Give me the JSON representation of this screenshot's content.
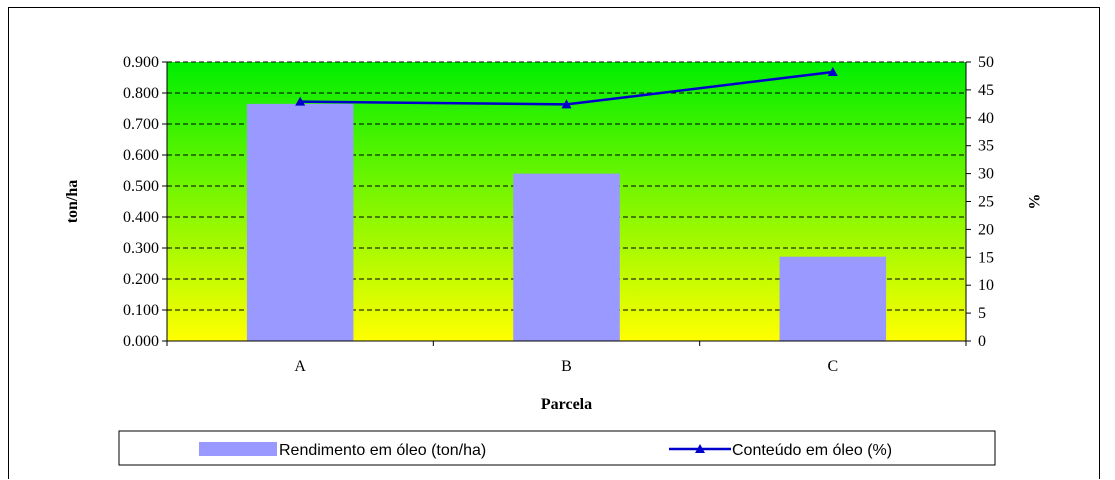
{
  "chart_data": {
    "type": "bar",
    "categories": [
      "A",
      "B",
      "C"
    ],
    "xlabel": "Parcela",
    "ylabel": "ton/ha",
    "y2label": "%",
    "ylim": [
      0,
      0.9
    ],
    "y2lim": [
      0,
      50
    ],
    "yticks": [
      "0.000",
      "0.100",
      "0.200",
      "0.300",
      "0.400",
      "0.500",
      "0.600",
      "0.700",
      "0.800",
      "0.900"
    ],
    "y2ticks": [
      "0",
      "5",
      "10",
      "15",
      "20",
      "25",
      "30",
      "35",
      "40",
      "45",
      "50"
    ],
    "grid": true,
    "background_gradient": [
      "#00ee00",
      "#ffff00"
    ],
    "legend_position": "bottom",
    "series": [
      {
        "name": "Rendimento em óleo (ton/ha)",
        "type": "bar",
        "axis": "left",
        "color": "#9999ff",
        "values": [
          0.765,
          0.54,
          0.272
        ]
      },
      {
        "name": "Conteúdo em óleo (%)",
        "type": "line",
        "axis": "right",
        "color": "#0000cc",
        "marker": "triangle",
        "values": [
          42.9,
          42.4,
          48.2
        ]
      }
    ]
  }
}
